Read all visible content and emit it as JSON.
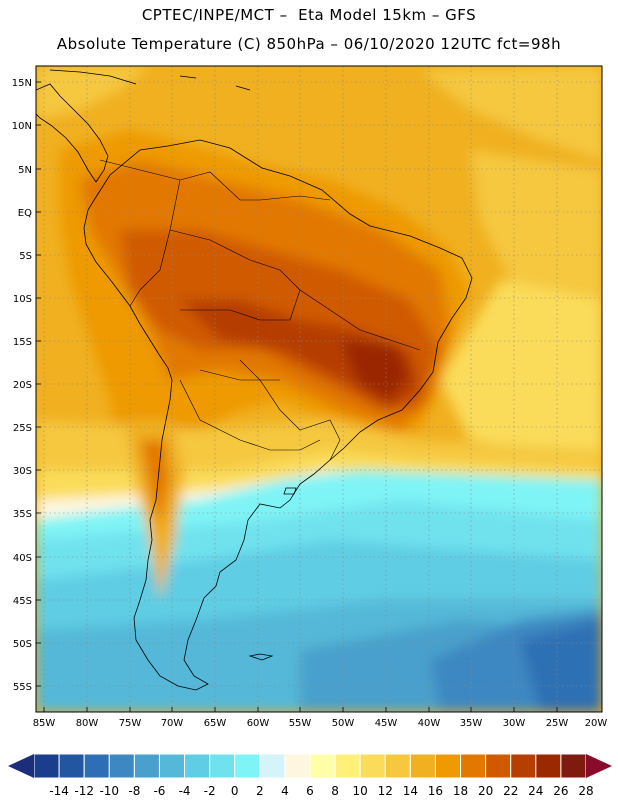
{
  "header": {
    "line1": "CPTEC/INPE/MCT –  Eta Model 15km – GFS",
    "line2": "Absolute Temperature (C) 850hPa – 06/10/2020 12UTC fct=98h"
  },
  "axes": {
    "lat_labels": [
      "15N",
      "10N",
      "5N",
      "EQ",
      "5S",
      "10S",
      "15S",
      "20S",
      "25S",
      "30S",
      "35S",
      "40S",
      "45S",
      "50S",
      "55S"
    ],
    "lon_labels": [
      "85W",
      "80W",
      "75W",
      "70W",
      "65W",
      "60W",
      "55W",
      "50W",
      "45W",
      "40W",
      "35W",
      "30W",
      "25W",
      "20W"
    ]
  },
  "colorbar": {
    "labels": [
      "-14",
      "-12",
      "-10",
      "-8",
      "-6",
      "-4",
      "-2",
      "0",
      "2",
      "4",
      "6",
      "8",
      "10",
      "12",
      "14",
      "16",
      "18",
      "20",
      "22",
      "24",
      "26",
      "28"
    ],
    "colors": [
      "#1a3d8c",
      "#2356a0",
      "#2e6fb4",
      "#3d88c2",
      "#4aa0cc",
      "#55b8d8",
      "#5fcde4",
      "#6fe2ee",
      "#7ff4f6",
      "#d4f4fa",
      "#fff6e0",
      "#ffffa8",
      "#fff07a",
      "#fadc5a",
      "#f5c840",
      "#f0b020",
      "#ee9a00",
      "#e27800",
      "#d05a00",
      "#b63e00",
      "#9a2800",
      "#7e1a10"
    ],
    "under_color": "#1c2d7a",
    "over_color": "#8a0a2a"
  }
}
